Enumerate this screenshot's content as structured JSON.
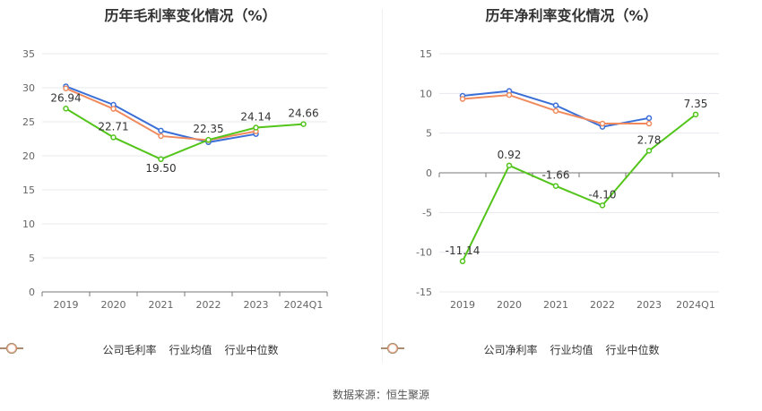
{
  "source_text": "数据来源：恒生聚源",
  "chart_data": [
    {
      "type": "line",
      "title": "历年毛利率变化情况（%）",
      "categories": [
        "2019",
        "2020",
        "2021",
        "2022",
        "2023",
        "2024Q1"
      ],
      "ylim": [
        0,
        35
      ],
      "yticks": [
        0,
        5,
        10,
        15,
        20,
        25,
        30,
        35
      ],
      "grid": true,
      "legend_position": "bottom",
      "series": [
        {
          "name": "公司毛利率",
          "color": "#52c41a",
          "values": [
            26.94,
            22.71,
            19.5,
            22.35,
            24.14,
            24.66
          ],
          "labels": [
            "26.94",
            "22.71",
            "19.50",
            "22.35",
            "24.14",
            "24.66"
          ]
        },
        {
          "name": "行业均值",
          "color": "#3a6fd8",
          "values": [
            30.2,
            27.5,
            23.7,
            22.0,
            23.2,
            null
          ]
        },
        {
          "name": "行业中位数",
          "color": "#f08a5d",
          "values": [
            29.9,
            26.9,
            22.9,
            22.3,
            23.6,
            null
          ]
        }
      ]
    },
    {
      "type": "line",
      "title": "历年净利率变化情况（%）",
      "categories": [
        "2019",
        "2020",
        "2021",
        "2022",
        "2023",
        "2024Q1"
      ],
      "ylim": [
        -15,
        15
      ],
      "yticks": [
        -15,
        -10,
        -5,
        0,
        5,
        10,
        15
      ],
      "grid": true,
      "legend_position": "bottom",
      "series": [
        {
          "name": "公司净利率",
          "color": "#52c41a",
          "values": [
            -11.14,
            0.92,
            -1.66,
            -4.1,
            2.78,
            7.35
          ],
          "labels": [
            "-11.14",
            "0.92",
            "-1.66",
            "-4.10",
            "2.78",
            "7.35"
          ]
        },
        {
          "name": "行业均值",
          "color": "#3a6fd8",
          "values": [
            9.7,
            10.3,
            8.5,
            5.8,
            6.9,
            null
          ]
        },
        {
          "name": "行业中位数",
          "color": "#f08a5d",
          "values": [
            9.3,
            9.8,
            7.8,
            6.2,
            6.2,
            null
          ]
        }
      ]
    }
  ]
}
